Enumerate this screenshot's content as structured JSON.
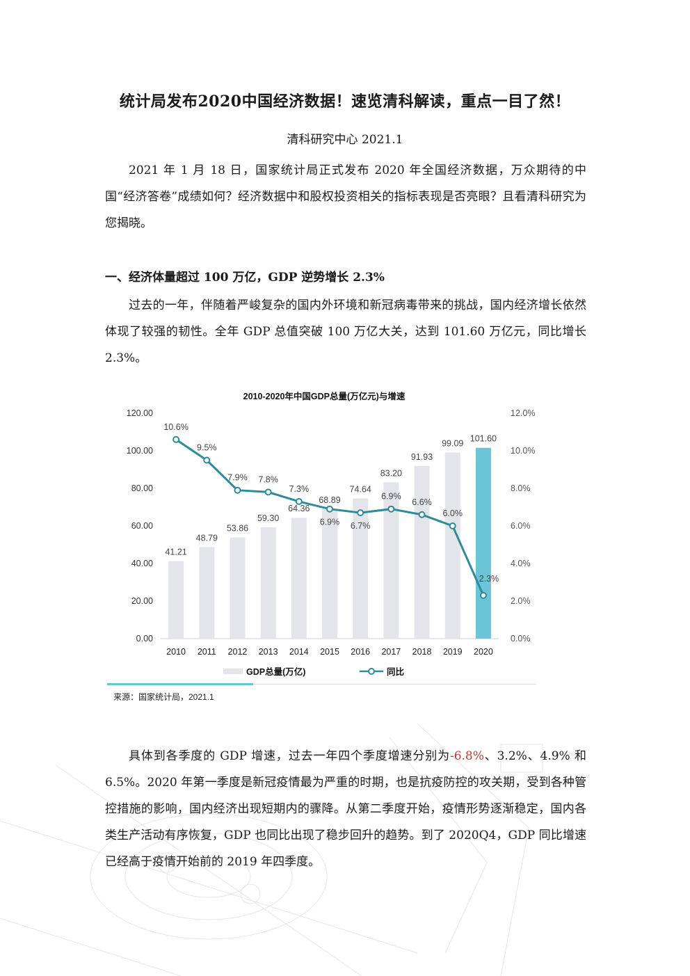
{
  "document": {
    "title": "统计局发布2020中国经济数据！速览清科解读，重点一目了然！",
    "subtitle": "清科研究中心  2021.1",
    "intro": "2021 年 1 月 18 日，国家统计局正式发布 2020 年全国经济数据，万众期待的中国“经济答卷”成绩如何？经济数据中和股权投资相关的指标表现是否亮眼？且看清科研究为您揭晓。",
    "section1_heading": "一、经济体量超过 100 万亿，GDP 逆势增长 2.3%",
    "section1_para": "过去的一年，伴随着严峻复杂的国内外环境和新冠病毒带来的挑战，国内经济增长依然体现了较强的韧性。全年 GDP 总值突破 100 万亿大关，达到 101.60 万亿元，同比增长 2.3%。",
    "para2_before": "具体到各季度的 GDP 增速，过去一年四个季度增速分别为",
    "para2_red": "-6.8%",
    "para2_after": "、3.2%、4.9% 和 6.5%。2020 年第一季度是新冠疫情最为严重的时期，也是抗疫防控的攻关期，受到各种管控措施的影响，国内经济出现短期内的骤降。从第二季度开始，疫情形势逐渐稳定，国内各类生产活动有序恢复，GDP 也同比出现了稳步回升的趋势。到了 2020Q4，GDP 同比增速已经高于疫情开始前的 2019 年四季度。"
  },
  "chart_data": {
    "type": "bar+line",
    "title": "2010-2020年中国GDP总量(万亿元)与增速",
    "categories": [
      "2010",
      "2011",
      "2012",
      "2013",
      "2014",
      "2015",
      "2016",
      "2017",
      "2018",
      "2019",
      "2020"
    ],
    "series": [
      {
        "name": "GDP总量(万亿)",
        "type": "bar",
        "axis": "left",
        "values": [
          41.21,
          48.79,
          53.86,
          59.3,
          64.36,
          68.89,
          74.64,
          83.2,
          91.93,
          99.09,
          101.6
        ],
        "labels": [
          "41.21",
          "48.79",
          "53.86",
          "59.30",
          "64.36",
          "68.89",
          "74.64",
          "83.20",
          "91.93",
          "99.09",
          "101.60"
        ],
        "color": "#e3e5ea",
        "highlight_color": "#6cc5d6"
      },
      {
        "name": "同比",
        "type": "line",
        "axis": "right",
        "values": [
          10.6,
          9.5,
          7.9,
          7.8,
          7.3,
          6.9,
          6.7,
          6.9,
          6.6,
          6.0,
          2.3
        ],
        "labels": [
          "10.6%",
          "9.5%",
          "7.9%",
          "7.8%",
          "7.3%",
          "6.9%",
          "6.7%",
          "6.9%",
          "6.6%",
          "6.0%",
          "2.3%"
        ],
        "color": "#2e8b99"
      }
    ],
    "y_left": {
      "min": 0,
      "max": 120,
      "ticks": [
        "0.00",
        "20.00",
        "40.00",
        "60.00",
        "80.00",
        "100.00",
        "120.00"
      ]
    },
    "y_right": {
      "min": 0,
      "max": 12,
      "ticks": [
        "0.0%",
        "2.0%",
        "4.0%",
        "6.0%",
        "8.0%",
        "10.0%",
        "12.0%"
      ]
    },
    "grid": false,
    "legend": "bottom",
    "source": "来源：国家统计局，2021.1"
  }
}
